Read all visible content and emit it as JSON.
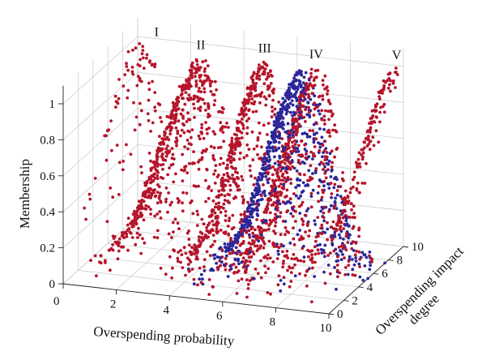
{
  "chart_data": {
    "type": "scatter",
    "title": "",
    "xlabel": "Overspending probability",
    "ylabel": "Overspending impact degree",
    "zlabel": "Membership",
    "xlim": [
      0,
      10
    ],
    "ylim": [
      0,
      10
    ],
    "zlim": [
      0,
      1
    ],
    "x_ticks": [
      "0",
      "2",
      "4",
      "6",
      "8",
      "10"
    ],
    "y_ticks": [
      "0",
      "2",
      "4",
      "6",
      "8",
      "10"
    ],
    "z_ticks": [
      "0",
      "0.2",
      "0.4",
      "0.6",
      "0.8",
      "1"
    ],
    "grid": true,
    "colors": {
      "red": "#b5152b",
      "blue": "#2b2799"
    },
    "series": [
      {
        "label": "I",
        "color": "red",
        "center": [
          0.3,
          9.5
        ],
        "peak": [
          0.3,
          9.5,
          1.0
        ]
      },
      {
        "label": "II",
        "color": "red",
        "center": [
          3.0,
          8.0
        ],
        "peak": [
          3.0,
          8.0,
          1.0
        ]
      },
      {
        "label": "III",
        "color": "red",
        "center": [
          5.2,
          8.5
        ],
        "peak": [
          5.2,
          8.5,
          1.0
        ]
      },
      {
        "label": "IV",
        "color": "blue",
        "center": [
          6.8,
          8.0
        ],
        "peak": [
          6.8,
          8.0,
          1.0
        ]
      },
      {
        "label": "IV",
        "color": "red",
        "center": [
          7.2,
          8.5
        ],
        "peak": [
          7.2,
          8.5,
          1.0
        ]
      },
      {
        "label": "V",
        "color": "red",
        "center": [
          9.8,
          9.8
        ],
        "peak": [
          9.8,
          9.8,
          1.0
        ]
      }
    ],
    "annotations": [
      "I",
      "II",
      "III",
      "IV",
      "V"
    ]
  }
}
